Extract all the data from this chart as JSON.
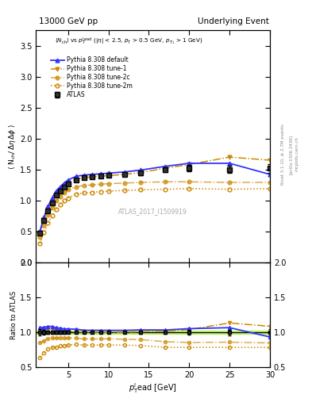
{
  "title_left": "13000 GeV pp",
  "title_right": "Underlying Event",
  "annotation": "ATLAS_2017_I1509919",
  "rivet_label": "Rivet 3.1.10, ≥ 2.7M events",
  "arxiv_label": "[arXiv:1306.3436]",
  "mcplots_label": "mcplots.cern.ch",
  "ylim_main": [
    0,
    3.75
  ],
  "ylim_ratio": [
    0.5,
    2.0
  ],
  "xlim": [
    1,
    30
  ],
  "atlas_x": [
    1.5,
    2.0,
    2.5,
    3.0,
    3.5,
    4.0,
    4.5,
    5.0,
    6.0,
    7.0,
    8.0,
    9.0,
    10.0,
    12.0,
    14.0,
    17.0,
    20.0,
    25.0,
    30.0
  ],
  "atlas_y": [
    0.47,
    0.68,
    0.83,
    0.96,
    1.08,
    1.15,
    1.22,
    1.27,
    1.33,
    1.37,
    1.38,
    1.39,
    1.4,
    1.42,
    1.44,
    1.5,
    1.52,
    1.5,
    1.52
  ],
  "atlas_yerr": [
    0.02,
    0.02,
    0.02,
    0.02,
    0.02,
    0.02,
    0.02,
    0.02,
    0.02,
    0.02,
    0.02,
    0.02,
    0.02,
    0.02,
    0.03,
    0.04,
    0.05,
    0.06,
    0.07
  ],
  "default_x": [
    1.5,
    2.0,
    2.5,
    3.0,
    3.5,
    4.0,
    4.5,
    5.0,
    6.0,
    7.0,
    8.0,
    9.0,
    10.0,
    12.0,
    14.0,
    17.0,
    20.0,
    25.0,
    30.0
  ],
  "default_y": [
    0.5,
    0.73,
    0.9,
    1.04,
    1.15,
    1.22,
    1.28,
    1.33,
    1.39,
    1.41,
    1.42,
    1.43,
    1.44,
    1.46,
    1.49,
    1.55,
    1.6,
    1.6,
    1.42
  ],
  "tune1_x": [
    1.5,
    2.0,
    2.5,
    3.0,
    3.5,
    4.0,
    4.5,
    5.0,
    6.0,
    7.0,
    8.0,
    9.0,
    10.0,
    12.0,
    14.0,
    17.0,
    20.0,
    25.0,
    30.0
  ],
  "tune1_y": [
    0.48,
    0.7,
    0.87,
    1.0,
    1.11,
    1.18,
    1.24,
    1.29,
    1.34,
    1.37,
    1.38,
    1.39,
    1.4,
    1.42,
    1.45,
    1.52,
    1.58,
    1.7,
    1.65
  ],
  "tune2c_x": [
    1.5,
    2.0,
    2.5,
    3.0,
    3.5,
    4.0,
    4.5,
    5.0,
    6.0,
    7.0,
    8.0,
    9.0,
    10.0,
    12.0,
    14.0,
    17.0,
    20.0,
    25.0,
    30.0
  ],
  "tune2c_y": [
    0.4,
    0.6,
    0.76,
    0.88,
    0.99,
    1.06,
    1.12,
    1.17,
    1.22,
    1.24,
    1.25,
    1.26,
    1.27,
    1.28,
    1.29,
    1.3,
    1.3,
    1.29,
    1.29
  ],
  "tune2m_x": [
    1.5,
    2.0,
    2.5,
    3.0,
    3.5,
    4.0,
    4.5,
    5.0,
    6.0,
    7.0,
    8.0,
    9.0,
    10.0,
    12.0,
    14.0,
    17.0,
    20.0,
    25.0,
    30.0
  ],
  "tune2m_y": [
    0.3,
    0.48,
    0.63,
    0.75,
    0.85,
    0.93,
    0.99,
    1.04,
    1.1,
    1.12,
    1.13,
    1.14,
    1.15,
    1.16,
    1.17,
    1.18,
    1.19,
    1.18,
    1.19
  ],
  "color_atlas": "#000000",
  "color_default": "#3333ff",
  "color_tune": "#cc8800",
  "green_band_lo": 0.975,
  "green_band_hi": 1.025,
  "green_band_color": "#aaee44"
}
